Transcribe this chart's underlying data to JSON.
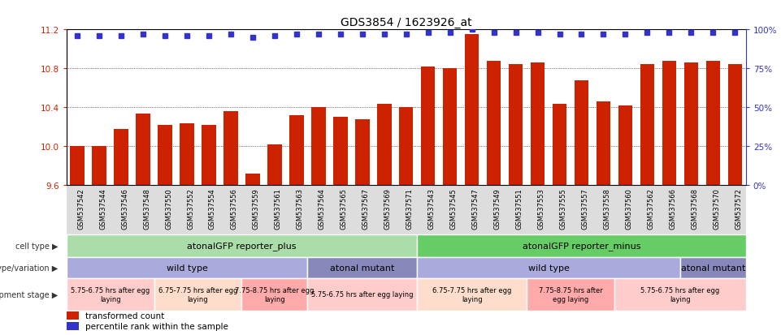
{
  "title": "GDS3854 / 1623926_at",
  "bar_color": "#cc2200",
  "dot_color": "#3333cc",
  "ylim": [
    9.6,
    11.2
  ],
  "yticks": [
    9.6,
    10.0,
    10.4,
    10.8,
    11.2
  ],
  "right_yticks": [
    0,
    25,
    50,
    75,
    100
  ],
  "right_ylabels": [
    "0%",
    "25%",
    "50%",
    "75%",
    "100%"
  ],
  "samples": [
    "GSM537542",
    "GSM537544",
    "GSM537546",
    "GSM537548",
    "GSM537550",
    "GSM537552",
    "GSM537554",
    "GSM537556",
    "GSM537559",
    "GSM537561",
    "GSM537563",
    "GSM537564",
    "GSM537565",
    "GSM537567",
    "GSM537569",
    "GSM537571",
    "GSM537543",
    "GSM537545",
    "GSM537547",
    "GSM537549",
    "GSM537551",
    "GSM537553",
    "GSM537555",
    "GSM537557",
    "GSM537558",
    "GSM537560",
    "GSM537562",
    "GSM537566",
    "GSM537568",
    "GSM537570",
    "GSM537572"
  ],
  "bar_values": [
    10.0,
    10.0,
    10.18,
    10.34,
    10.22,
    10.24,
    10.22,
    10.36,
    9.72,
    10.02,
    10.32,
    10.4,
    10.3,
    10.28,
    10.44,
    10.4,
    10.82,
    10.8,
    11.15,
    10.88,
    10.84,
    10.86,
    10.44,
    10.68,
    10.46,
    10.42,
    10.84,
    10.88,
    10.86,
    10.88,
    10.84
  ],
  "percentile_values": [
    96,
    96,
    96,
    97,
    96,
    96,
    96,
    97,
    95,
    96,
    97,
    97,
    97,
    97,
    97,
    97,
    98,
    98,
    100,
    98,
    98,
    98,
    97,
    97,
    97,
    97,
    98,
    98,
    98,
    98,
    98
  ],
  "cell_type_blocks": [
    {
      "label": "atonalGFP reporter_plus",
      "start": 0,
      "end": 16,
      "color": "#aaddaa"
    },
    {
      "label": "atonalGFP reporter_minus",
      "start": 16,
      "end": 31,
      "color": "#66cc66"
    }
  ],
  "genotype_blocks": [
    {
      "label": "wild type",
      "start": 0,
      "end": 11,
      "color": "#aaaadd"
    },
    {
      "label": "atonal mutant",
      "start": 11,
      "end": 16,
      "color": "#8888bb"
    },
    {
      "label": "wild type",
      "start": 16,
      "end": 28,
      "color": "#aaaadd"
    },
    {
      "label": "atonal mutant",
      "start": 28,
      "end": 31,
      "color": "#8888bb"
    }
  ],
  "dev_stage_blocks": [
    {
      "label": "5.75-6.75 hrs after egg\nlaying",
      "start": 0,
      "end": 4,
      "color": "#ffcccc"
    },
    {
      "label": "6.75-7.75 hrs after egg\nlaying",
      "start": 4,
      "end": 8,
      "color": "#ffddcc"
    },
    {
      "label": "7.75-8.75 hrs after egg\nlaying",
      "start": 8,
      "end": 11,
      "color": "#ffaaaa"
    },
    {
      "label": "5.75-6.75 hrs after egg laying",
      "start": 11,
      "end": 16,
      "color": "#ffcccc"
    },
    {
      "label": "6.75-7.75 hrs after egg\nlaying",
      "start": 16,
      "end": 21,
      "color": "#ffddcc"
    },
    {
      "label": "7.75-8.75 hrs after\negg laying",
      "start": 21,
      "end": 25,
      "color": "#ffaaaa"
    },
    {
      "label": "5.75-6.75 hrs after egg\nlaying",
      "start": 25,
      "end": 31,
      "color": "#ffcccc"
    }
  ],
  "tick_bg_color": "#dddddd",
  "background_color": "#ffffff"
}
